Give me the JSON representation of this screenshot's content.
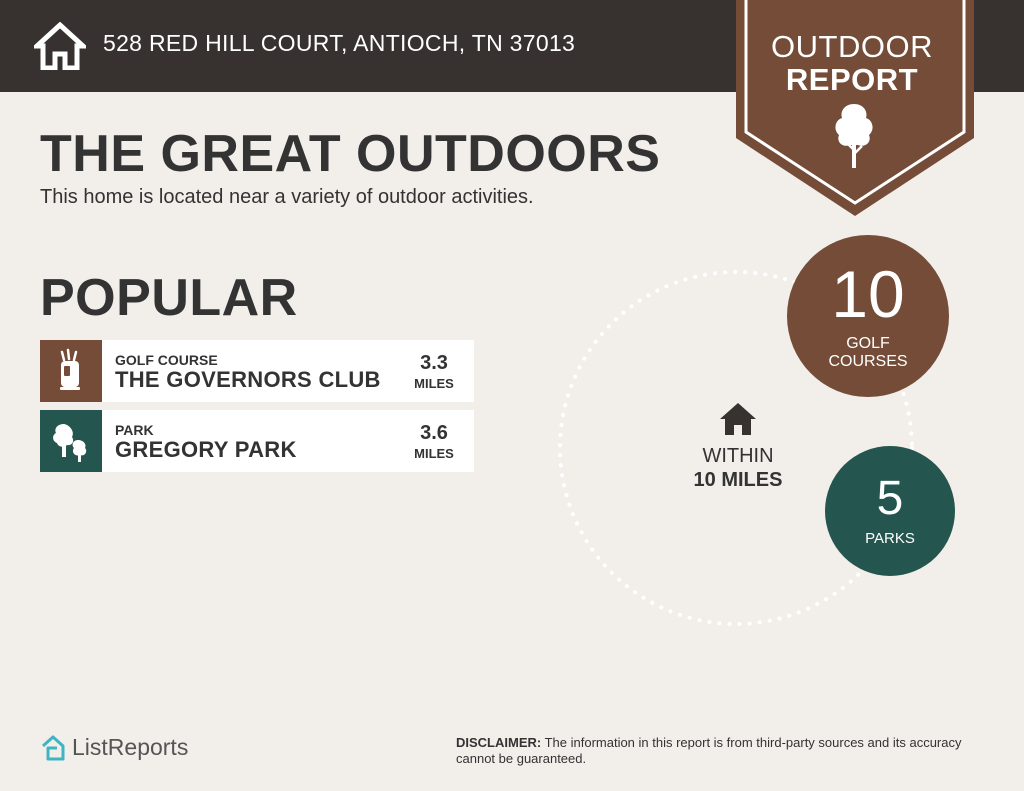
{
  "header": {
    "address": "528 RED HILL COURT, ANTIOCH, TN 37013",
    "badge_line1": "OUTDOOR",
    "badge_line2": "REPORT"
  },
  "main": {
    "title": "THE GREAT OUTDOORS",
    "subtitle": "This home is located near a variety of outdoor activities.",
    "section_title": "POPULAR"
  },
  "popular": [
    {
      "type": "GOLF COURSE",
      "name": "THE GOVERNORS CLUB",
      "distance": "3.3",
      "unit": "MILES",
      "icon": "golf-bag-icon",
      "color": "#744c37"
    },
    {
      "type": "PARK",
      "name": "GREGORY PARK",
      "distance": "3.6",
      "unit": "MILES",
      "icon": "trees-icon",
      "color": "#24554f"
    }
  ],
  "radius": {
    "line1": "WITHIN",
    "line2": "10 MILES",
    "icon": "home-icon"
  },
  "counts": {
    "golf": {
      "value": "10",
      "label": "GOLF COURSES",
      "color": "#744c37"
    },
    "parks": {
      "value": "5",
      "label": "PARKS",
      "color": "#24554f"
    }
  },
  "footer": {
    "brand": "ListReports",
    "disclaimer_label": "DISCLAIMER:",
    "disclaimer_text": " The information in this report is from third-party sources and its accuracy cannot be guaranteed."
  },
  "colors": {
    "dark": "#373130",
    "brown": "#744c37",
    "teal": "#24554f",
    "background": "#f2eeea",
    "logo": "#3db5c2"
  }
}
